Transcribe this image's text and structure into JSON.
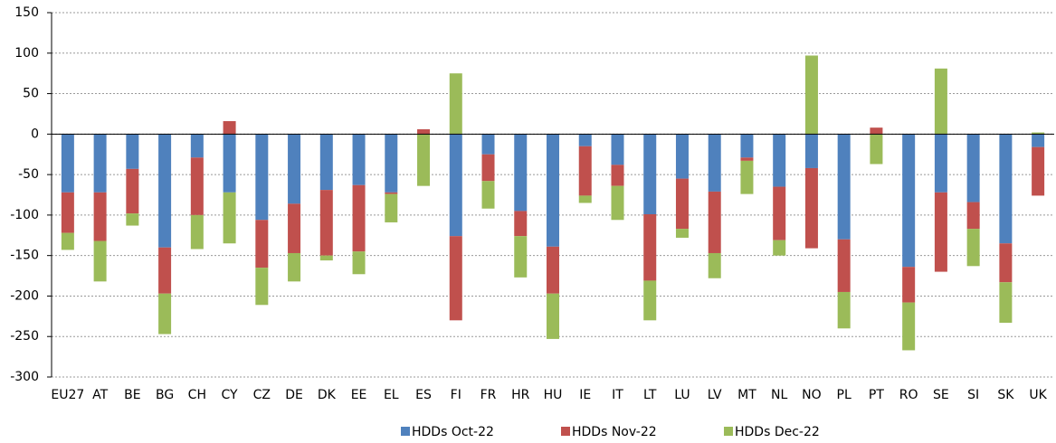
{
  "chart_data": {
    "type": "stacked_bar",
    "categories": [
      "EU27",
      "AT",
      "BE",
      "BG",
      "CH",
      "CY",
      "CZ",
      "DE",
      "DK",
      "EE",
      "EL",
      "ES",
      "FI",
      "FR",
      "HR",
      "HU",
      "IE",
      "IT",
      "LT",
      "LU",
      "LV",
      "MT",
      "NL",
      "NO",
      "PL",
      "PT",
      "RO",
      "SE",
      "SI",
      "SK",
      "UK"
    ],
    "series": [
      {
        "name": "HDDs Oct-22",
        "color": "#4f81bd",
        "values": [
          -72,
          -72,
          -43,
          -140,
          -29,
          -72,
          -106,
          -86,
          -69,
          -63,
          -72,
          0,
          -126,
          -25,
          -95,
          -139,
          -15,
          -38,
          -99,
          -55,
          -71,
          -29,
          -65,
          -42,
          -130,
          0,
          -164,
          -72,
          -84,
          -135,
          -16
        ]
      },
      {
        "name": "HDDs Nov-22",
        "color": "#c0504d",
        "values": [
          -50,
          -60,
          -55,
          -57,
          -71,
          16,
          -59,
          -61,
          -81,
          -82,
          -2,
          6,
          -104,
          -33,
          -31,
          -58,
          -61,
          -26,
          -82,
          -62,
          -76,
          -4,
          -66,
          -99,
          -65,
          8,
          -44,
          -98,
          -33,
          -48,
          -60
        ]
      },
      {
        "name": "HDDs Dec-22",
        "color": "#9bbb59",
        "values": [
          -21,
          -50,
          -15,
          -50,
          -42,
          -63,
          -46,
          -35,
          -6,
          -28,
          -35,
          -64,
          75,
          -34,
          -51,
          -56,
          -9,
          -42,
          -49,
          -11,
          -31,
          -41,
          -19,
          97,
          -45,
          -37,
          -59,
          81,
          -46,
          -50,
          2
        ]
      }
    ],
    "ylim": [
      -300,
      150
    ],
    "yticks": [
      -300,
      -250,
      -200,
      -150,
      -100,
      -50,
      0,
      50,
      100,
      150
    ],
    "grid": true,
    "legend": "bottom"
  }
}
